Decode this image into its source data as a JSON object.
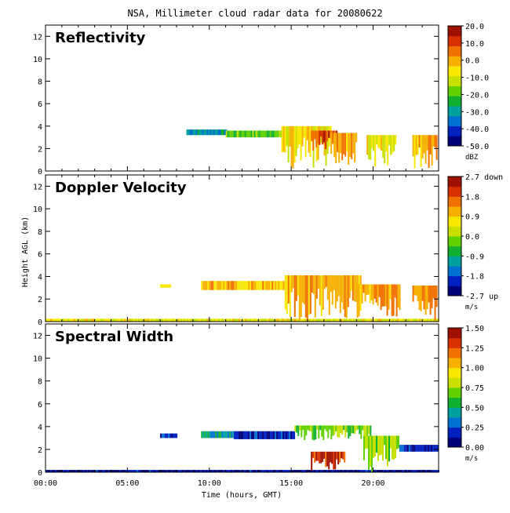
{
  "chart_data": [
    {
      "type": "heatmap",
      "title": "Reflectivity",
      "ylim": [
        0,
        13
      ],
      "yticks": [
        0,
        2,
        4,
        6,
        8,
        10,
        12
      ],
      "colorbar": {
        "ticks": [
          "20.0",
          "10.0",
          "0.0",
          "-10.0",
          "-20.0",
          "-30.0",
          "-40.0",
          "-50.0"
        ],
        "unit": "dBZ",
        "range": [
          -50,
          20
        ]
      },
      "regions": [
        {
          "x": [
            8.6,
            11.0
          ],
          "y": [
            3.2,
            3.7
          ],
          "level": 0.28
        },
        {
          "x": [
            11.0,
            14.4
          ],
          "y": [
            3.0,
            3.6
          ],
          "level": 0.45
        },
        {
          "x": [
            14.4,
            17.4
          ],
          "y": [
            0.0,
            4.0
          ],
          "level": 0.62
        },
        {
          "x": [
            16.2,
            17.8
          ],
          "y": [
            1.5,
            3.6
          ],
          "level": 0.85
        },
        {
          "x": [
            17.4,
            19.0
          ],
          "y": [
            0.5,
            3.4
          ],
          "level": 0.7
        },
        {
          "x": [
            19.6,
            21.4
          ],
          "y": [
            0.3,
            3.2
          ],
          "level": 0.6
        },
        {
          "x": [
            22.4,
            23.9
          ],
          "y": [
            0.0,
            3.2
          ],
          "level": 0.72
        }
      ]
    },
    {
      "type": "heatmap",
      "title": "Doppler Velocity",
      "ylim": [
        0,
        13
      ],
      "yticks": [
        0,
        2,
        4,
        6,
        8,
        10,
        12
      ],
      "colorbar": {
        "ticks": [
          "2.7 down",
          "1.8",
          "0.9",
          "0.0",
          "-0.9",
          "-1.8",
          "-2.7 up"
        ],
        "unit": "m/s",
        "range": [
          -2.7,
          2.7
        ]
      },
      "regions": [
        {
          "x": [
            0.0,
            24.0
          ],
          "y": [
            0.0,
            0.25
          ],
          "level": 0.6
        },
        {
          "x": [
            7.0,
            7.6
          ],
          "y": [
            3.0,
            3.3
          ],
          "level": 0.65
        },
        {
          "x": [
            9.5,
            15.0
          ],
          "y": [
            2.8,
            3.6
          ],
          "level": 0.68
        },
        {
          "x": [
            14.6,
            19.2
          ],
          "y": [
            0.0,
            4.1
          ],
          "level": 0.72
        },
        {
          "x": [
            19.0,
            21.6
          ],
          "y": [
            0.3,
            3.3
          ],
          "level": 0.74
        },
        {
          "x": [
            22.4,
            23.9
          ],
          "y": [
            0.0,
            3.2
          ],
          "level": 0.76
        }
      ]
    },
    {
      "type": "heatmap",
      "title": "Spectral Width",
      "ylim": [
        0,
        13
      ],
      "yticks": [
        0,
        2,
        4,
        6,
        8,
        10,
        12
      ],
      "colorbar": {
        "ticks": [
          "1.50",
          "1.25",
          "1.00",
          "0.75",
          "0.50",
          "0.25",
          "0.00"
        ],
        "unit": "m/s",
        "range": [
          0,
          1.5
        ]
      },
      "regions": [
        {
          "x": [
            0.0,
            24.0
          ],
          "y": [
            0.0,
            0.2
          ],
          "level": 0.08
        },
        {
          "x": [
            7.0,
            8.0
          ],
          "y": [
            3.0,
            3.4
          ],
          "level": 0.15
        },
        {
          "x": [
            9.5,
            11.5
          ],
          "y": [
            3.0,
            3.6
          ],
          "level": 0.3
        },
        {
          "x": [
            11.5,
            15.2
          ],
          "y": [
            2.9,
            3.6
          ],
          "level": 0.12
        },
        {
          "x": [
            15.2,
            19.8
          ],
          "y": [
            2.8,
            4.1
          ],
          "level": 0.45
        },
        {
          "x": [
            16.2,
            18.3
          ],
          "y": [
            0.0,
            1.8
          ],
          "level": 0.9
        },
        {
          "x": [
            19.4,
            21.6
          ],
          "y": [
            0.0,
            3.2
          ],
          "level": 0.5
        },
        {
          "x": [
            21.6,
            23.9
          ],
          "y": [
            1.8,
            2.4
          ],
          "level": 0.1
        }
      ]
    }
  ],
  "figure": {
    "title": "NSA, Millimeter cloud radar data for 20080622",
    "ylabel": "Height AGL (km)",
    "xlabel": "Time (hours, GMT)",
    "xlim": [
      0,
      24
    ],
    "xticks": [
      {
        "value": 0,
        "label": "00:00"
      },
      {
        "value": 5,
        "label": "05:00"
      },
      {
        "value": 10,
        "label": "10:00"
      },
      {
        "value": 15,
        "label": "15:00"
      },
      {
        "value": 20,
        "label": "20:00"
      }
    ]
  },
  "colors": {
    "scale": [
      "#00007a",
      "#0020c0",
      "#0070d0",
      "#00a0a0",
      "#10b030",
      "#60d000",
      "#c8e000",
      "#f8e800",
      "#f8b000",
      "#f07000",
      "#d83000",
      "#a01000"
    ]
  }
}
